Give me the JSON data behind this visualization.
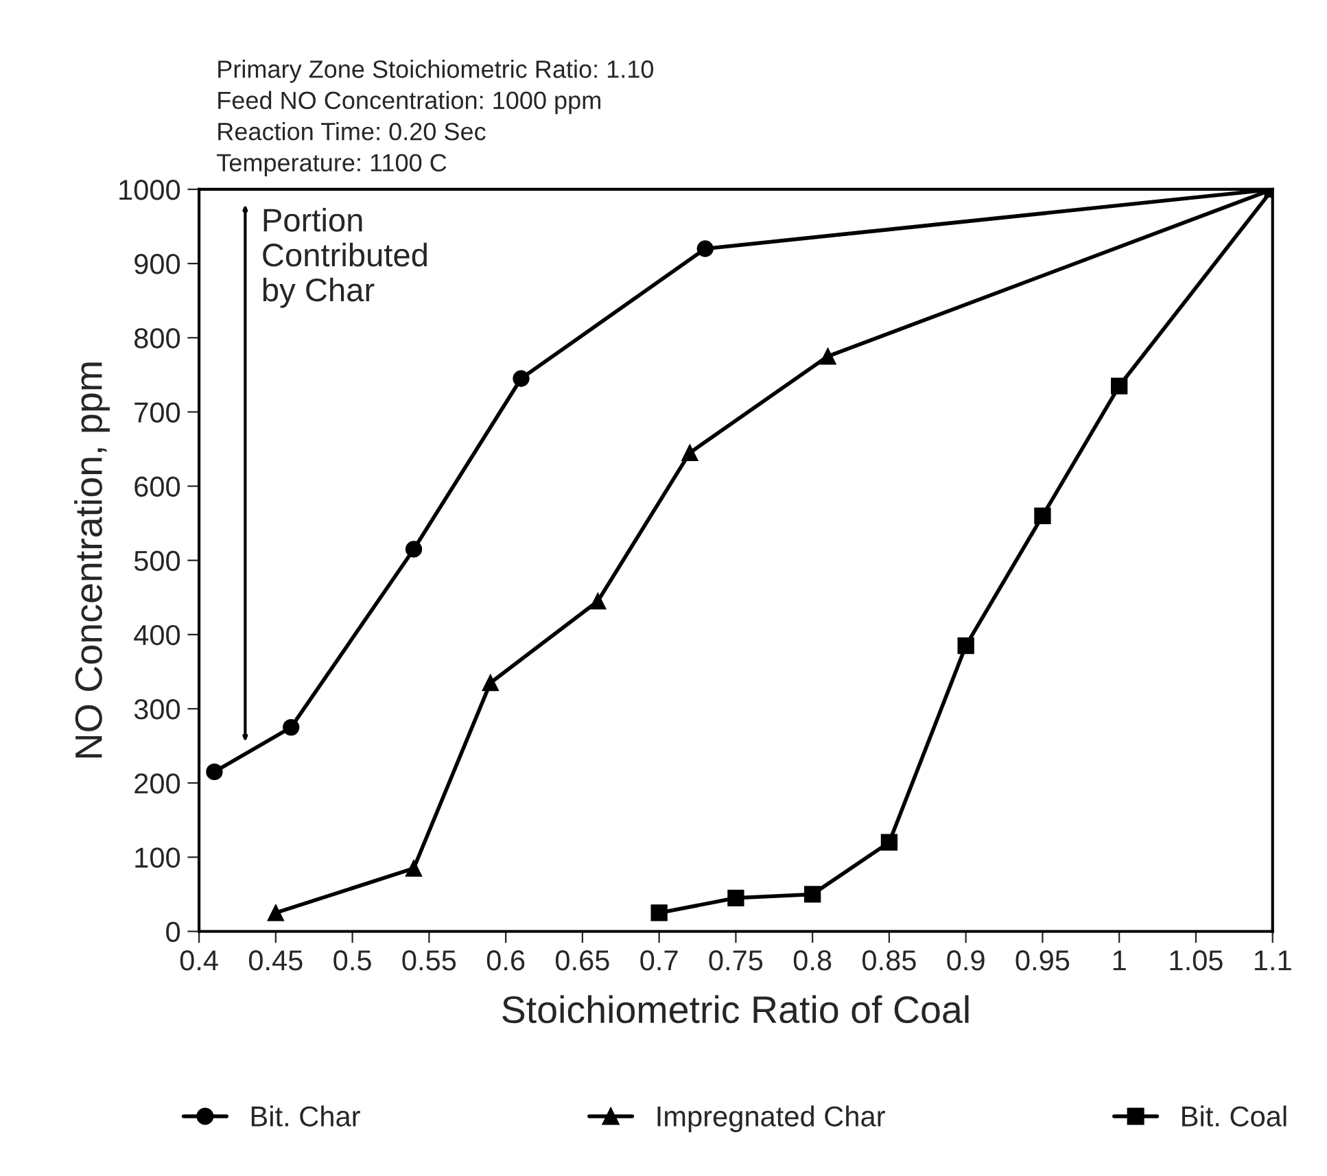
{
  "chart_data": {
    "type": "line",
    "xlabel": "Stoichiometric Ratio of Coal",
    "ylabel": "NO Concentration, ppm",
    "annotations": [
      "Primary Zone Stoichiometric Ratio: 1.10\nFeed NO Concentration: 1000 ppm\nReaction Time: 0.20 Sec\nTemperature: 1100 C",
      "Portion\nContributed\nby Char"
    ],
    "series": [
      {
        "name": "Bit. Char",
        "color": "#000000",
        "marker": "circle",
        "x": [
          0.41,
          0.46,
          0.54,
          0.61,
          0.73,
          1.1
        ],
        "values": [
          215,
          275,
          515,
          745,
          920,
          1000
        ]
      },
      {
        "name": "Impregnated Char",
        "color": "#000000",
        "marker": "triangle",
        "x": [
          0.45,
          0.54,
          0.59,
          0.66,
          0.72,
          0.81,
          1.1
        ],
        "values": [
          25,
          85,
          335,
          445,
          645,
          775,
          1000
        ]
      },
      {
        "name": "Bit. Coal",
        "color": "#000000",
        "marker": "square",
        "x": [
          0.7,
          0.75,
          0.8,
          0.85,
          0.9,
          0.95,
          1.0,
          1.1
        ],
        "values": [
          25,
          45,
          50,
          120,
          385,
          560,
          735,
          1000
        ]
      }
    ],
    "xlim": [
      0.4,
      1.1
    ],
    "xticks": [
      0.4,
      0.45,
      0.5,
      0.55,
      0.6,
      0.65,
      0.7,
      0.75,
      0.8,
      0.85,
      0.9,
      0.95,
      1,
      1.05,
      1.1
    ],
    "ylim": [
      0,
      1000
    ],
    "yticks": [
      0,
      100,
      200,
      300,
      400,
      500,
      600,
      700,
      800,
      900,
      1000
    ],
    "grid": false,
    "legend": "bottom",
    "line_style": "solid"
  }
}
